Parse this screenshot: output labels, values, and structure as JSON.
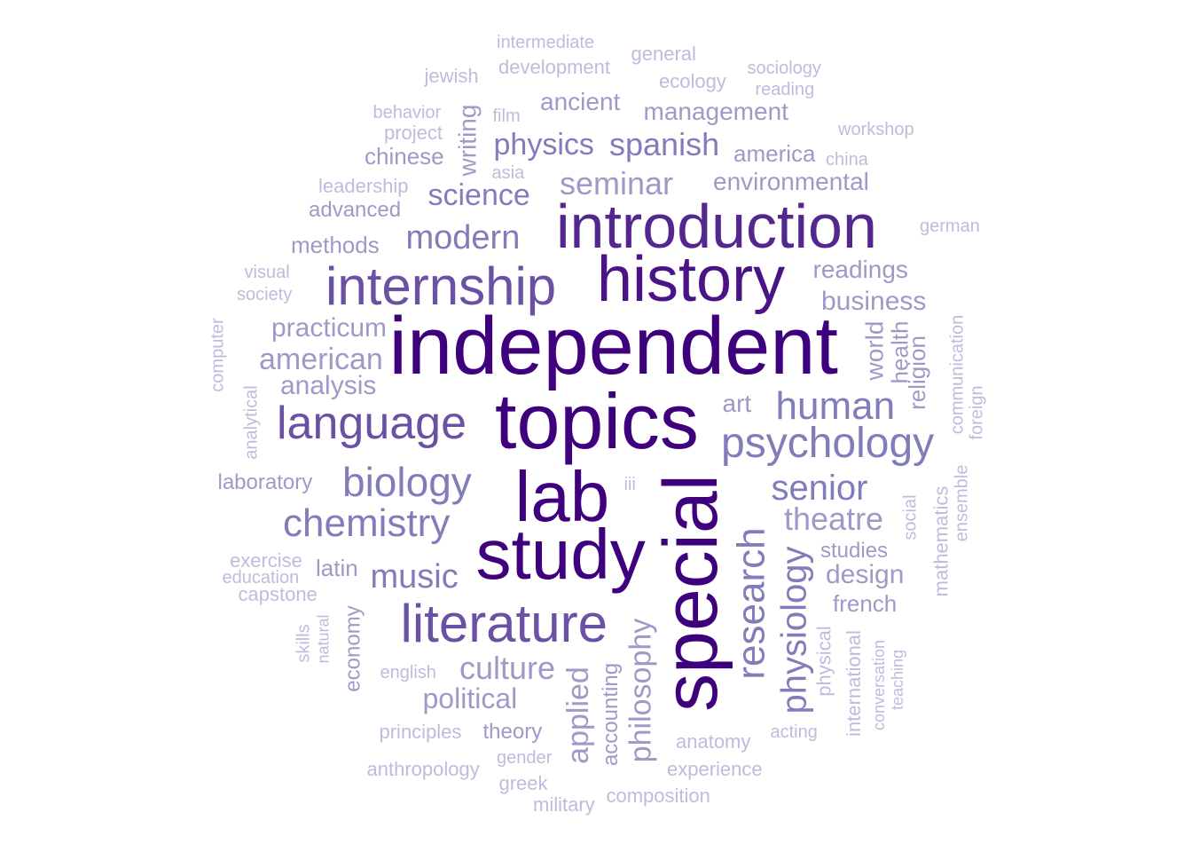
{
  "colors": {
    "background": "#ffffff",
    "palette": [
      "#3f007d",
      "#4a1486",
      "#54278f",
      "#6a51a3",
      "#807dba",
      "#9e9ac8",
      "#bcbddc"
    ]
  },
  "words": [
    {
      "text": "independent",
      "color_level": 0
    },
    {
      "text": "topics",
      "color_level": 0
    },
    {
      "text": "lab",
      "color_level": 0
    },
    {
      "text": "study",
      "color_level": 0
    },
    {
      "text": "special",
      "color_level": 0
    },
    {
      "text": "history",
      "color_level": 1
    },
    {
      "text": "introduction",
      "color_level": 2
    },
    {
      "text": "internship",
      "color_level": 3
    },
    {
      "text": "literature",
      "color_level": 3
    },
    {
      "text": "language",
      "color_level": 3
    },
    {
      "text": "psychology",
      "color_level": 4
    },
    {
      "text": "research",
      "color_level": 4
    },
    {
      "text": "chemistry",
      "color_level": 4
    },
    {
      "text": "biology",
      "color_level": 4
    },
    {
      "text": "human",
      "color_level": 4
    },
    {
      "text": "senior",
      "color_level": 4
    },
    {
      "text": "physiology",
      "color_level": 4
    },
    {
      "text": "modern",
      "color_level": 4
    },
    {
      "text": "music",
      "color_level": 4
    },
    {
      "text": "seminar",
      "color_level": 5
    },
    {
      "text": "spanish",
      "color_level": 4
    },
    {
      "text": "physics",
      "color_level": 4
    },
    {
      "text": "science",
      "color_level": 4
    },
    {
      "text": "theatre",
      "color_level": 5
    },
    {
      "text": "culture",
      "color_level": 5
    },
    {
      "text": "american",
      "color_level": 5
    },
    {
      "text": "philosophy",
      "color_level": 5
    },
    {
      "text": "applied",
      "color_level": 5
    },
    {
      "text": "political",
      "color_level": 5
    },
    {
      "text": "management",
      "color_level": 5
    },
    {
      "text": "environmental",
      "color_level": 5
    },
    {
      "text": "analysis",
      "color_level": 5
    },
    {
      "text": "business",
      "color_level": 5
    },
    {
      "text": "design",
      "color_level": 5
    },
    {
      "text": "ancient",
      "color_level": 5
    },
    {
      "text": "practicum",
      "color_level": 5
    },
    {
      "text": "readings",
      "color_level": 5
    },
    {
      "text": "world",
      "color_level": 5
    },
    {
      "text": "religion",
      "color_level": 5
    },
    {
      "text": "health",
      "color_level": 5
    },
    {
      "text": "america",
      "color_level": 5
    },
    {
      "text": "methods",
      "color_level": 5
    },
    {
      "text": "advanced",
      "color_level": 5
    },
    {
      "text": "chinese",
      "color_level": 5
    },
    {
      "text": "writing",
      "color_level": 5
    },
    {
      "text": "art",
      "color_level": 5
    },
    {
      "text": "french",
      "color_level": 5
    },
    {
      "text": "studies",
      "color_level": 5
    },
    {
      "text": "latin",
      "color_level": 5
    },
    {
      "text": "economy",
      "color_level": 5
    },
    {
      "text": "accounting",
      "color_level": 5
    },
    {
      "text": "theory",
      "color_level": 5
    },
    {
      "text": "laboratory",
      "color_level": 5
    },
    {
      "text": "development",
      "color_level": 6
    },
    {
      "text": "ecology",
      "color_level": 6
    },
    {
      "text": "physical",
      "color_level": 6
    },
    {
      "text": "anatomy",
      "color_level": 6
    },
    {
      "text": "capstone",
      "color_level": 6
    },
    {
      "text": "principles",
      "color_level": 6
    },
    {
      "text": "anthropology",
      "color_level": 6
    },
    {
      "text": "mathematics",
      "color_level": 6
    },
    {
      "text": "ensemble",
      "color_level": 6
    },
    {
      "text": "social",
      "color_level": 6
    },
    {
      "text": "international",
      "color_level": 6
    },
    {
      "text": "experience",
      "color_level": 6
    },
    {
      "text": "exercise",
      "color_level": 6
    },
    {
      "text": "jewish",
      "color_level": 6
    },
    {
      "text": "general",
      "color_level": 6
    },
    {
      "text": "intermediate",
      "color_level": 6
    },
    {
      "text": "sociology",
      "color_level": 6
    },
    {
      "text": "reading",
      "color_level": 6
    },
    {
      "text": "film",
      "color_level": 6
    },
    {
      "text": "behavior",
      "color_level": 6
    },
    {
      "text": "project",
      "color_level": 6
    },
    {
      "text": "workshop",
      "color_level": 6
    },
    {
      "text": "china",
      "color_level": 6
    },
    {
      "text": "asia",
      "color_level": 6
    },
    {
      "text": "leadership",
      "color_level": 6
    },
    {
      "text": "german",
      "color_level": 6
    },
    {
      "text": "visual",
      "color_level": 6
    },
    {
      "text": "society",
      "color_level": 6
    },
    {
      "text": "computer",
      "color_level": 6
    },
    {
      "text": "communication",
      "color_level": 6
    },
    {
      "text": "foreign",
      "color_level": 6
    },
    {
      "text": "analytical",
      "color_level": 6
    },
    {
      "text": "iii",
      "color_level": 6
    },
    {
      "text": "education",
      "color_level": 6
    },
    {
      "text": "skills",
      "color_level": 6
    },
    {
      "text": "natural",
      "color_level": 6
    },
    {
      "text": "english",
      "color_level": 6
    },
    {
      "text": "gender",
      "color_level": 6
    },
    {
      "text": "greek",
      "color_level": 6
    },
    {
      "text": "military",
      "color_level": 6
    },
    {
      "text": "composition",
      "color_level": 6
    },
    {
      "text": "acting",
      "color_level": 6
    },
    {
      "text": "conversation",
      "color_level": 6
    },
    {
      "text": "teaching",
      "color_level": 6
    }
  ]
}
